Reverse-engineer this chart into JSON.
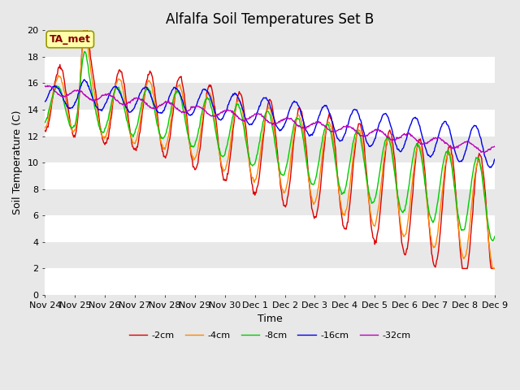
{
  "title": "Alfalfa Soil Temperatures Set B",
  "ylabel": "Soil Temperature (C)",
  "xlabel": "Time",
  "ylim": [
    0,
    20
  ],
  "yticks": [
    0,
    2,
    4,
    6,
    8,
    10,
    12,
    14,
    16,
    18,
    20
  ],
  "xtick_labels": [
    "Nov 24",
    "Nov 25",
    "Nov 26",
    "Nov 27",
    "Nov 28",
    "Nov 29",
    "Nov 30",
    "Dec 1",
    "Dec 2",
    "Dec 3",
    "Dec 4",
    "Dec 5",
    "Dec 6",
    "Dec 7",
    "Dec 8",
    "Dec 9"
  ],
  "legend_labels": [
    "-2cm",
    "-4cm",
    "-8cm",
    "-16cm",
    "-32cm"
  ],
  "line_colors": [
    "#dd0000",
    "#ff8800",
    "#00cc00",
    "#0000ee",
    "#bb00bb"
  ],
  "annotation_text": "TA_met",
  "annotation_color": "#880000",
  "annotation_bg": "#ffffaa",
  "background_color": "#e8e8e8",
  "grid_color": "#ffffff",
  "title_fontsize": 12,
  "axis_fontsize": 9,
  "tick_fontsize": 8
}
